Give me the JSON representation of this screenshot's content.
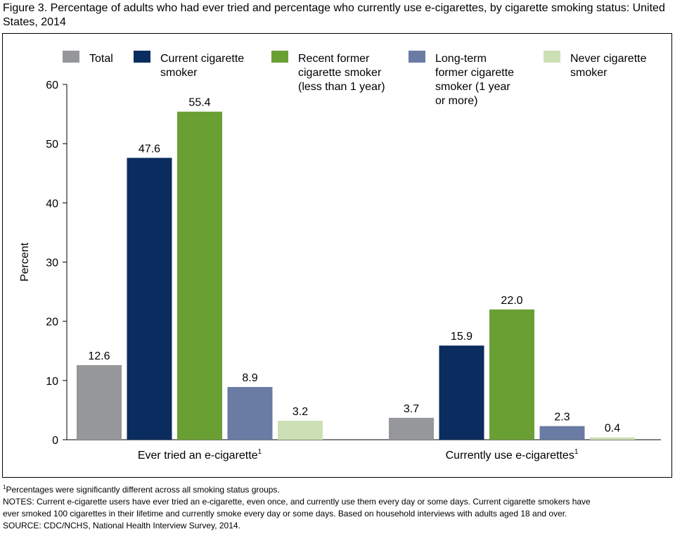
{
  "title": "Figure 3. Percentage of adults who had ever tried and percentage who currently use e-cigarettes, by cigarette smoking status: United States, 2014",
  "chart_data": {
    "type": "bar",
    "ylabel": "Percent",
    "ylim": [
      0,
      60
    ],
    "yticks": [
      0,
      10,
      20,
      30,
      40,
      50,
      60
    ],
    "grid": false,
    "legend_position": "top",
    "categories": [
      {
        "label": "Ever tried an e-cigarette",
        "footnote": "1"
      },
      {
        "label": "Currently use e-cigarettes",
        "footnote": "1"
      }
    ],
    "series": [
      {
        "name": "Total",
        "legend_lines": [
          "Total"
        ],
        "color": "#96979a",
        "values": [
          12.6,
          3.7
        ],
        "labels": [
          "12.6",
          "3.7"
        ]
      },
      {
        "name": "Current cigarette smoker",
        "legend_lines": [
          "Current cigarette",
          "smoker"
        ],
        "color": "#0b2c5f",
        "values": [
          47.6,
          15.9
        ],
        "labels": [
          "47.6",
          "15.9"
        ]
      },
      {
        "name": "Recent former cigarette smoker (less than 1 year)",
        "legend_lines": [
          "Recent former",
          "cigarette smoker",
          "(less than 1 year)"
        ],
        "color": "#6a9f34",
        "values": [
          55.4,
          22.0
        ],
        "labels": [
          "55.4",
          "22.0"
        ]
      },
      {
        "name": "Long-term former cigarette smoker (1 year or more)",
        "legend_lines": [
          "Long-term",
          "former cigarette",
          "smoker (1 year",
          "or more)"
        ],
        "color": "#6a7ba4",
        "values": [
          8.9,
          2.3
        ],
        "labels": [
          "8.9",
          "2.3"
        ]
      },
      {
        "name": "Never cigarette smoker",
        "legend_lines": [
          "Never cigarette",
          "smoker"
        ],
        "color": "#cddfb4",
        "values": [
          3.2,
          0.4
        ],
        "labels": [
          "3.2",
          "0.4"
        ]
      }
    ]
  },
  "notes": {
    "footnote_mark": "1",
    "footnote_text": "Percentages were significantly different across all smoking status groups.",
    "notes_line1": "NOTES: Current e-cigarette users have ever tried an e-cigarette, even once, and currently use them every day or some days. Current cigarette smokers have",
    "notes_line2": "ever smoked 100 cigarettes in their lifetime and currently smoke every day or some days. Based on household interviews with adults aged 18 and over.",
    "source": "SOURCE: CDC/NCHS, National Health Interview Survey, 2014."
  }
}
